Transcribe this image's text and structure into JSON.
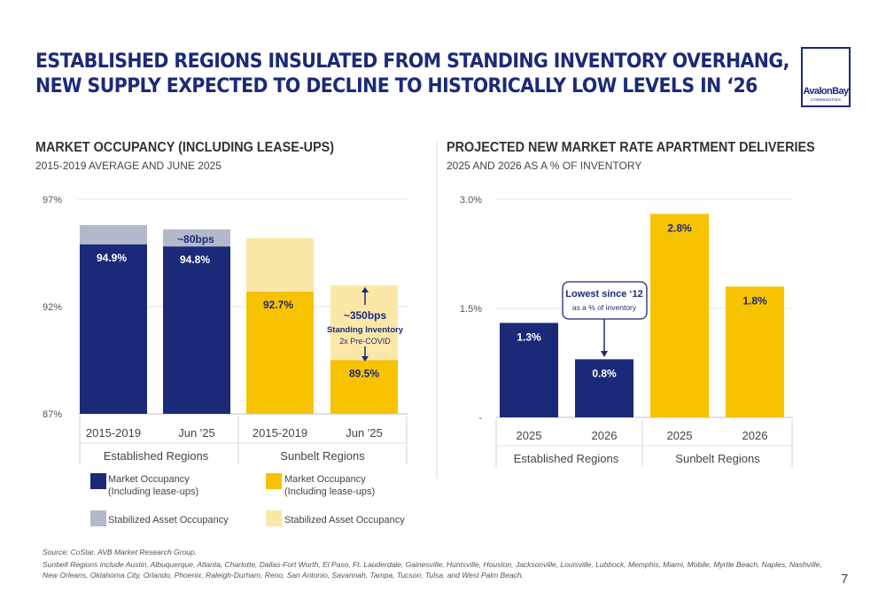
{
  "title": {
    "line1": "ESTABLISHED REGIONS INSULATED FROM STANDING INVENTORY OVERHANG,",
    "line2": "NEW SUPPLY EXPECTED TO DECLINE TO HISTORICALLY LOW LEVELS IN ‘26"
  },
  "logo": {
    "name": "AvalonBay",
    "sub": "COMMUNITIES"
  },
  "colors": {
    "navy": "#1b2a78",
    "gold": "#f7c200",
    "light_gold": "#fbe8a8",
    "light_navy": "#b3b8cb"
  },
  "chart_data": [
    {
      "type": "bar",
      "title": "MARKET OCCUPANCY (INCLUDING LEASE-UPS)",
      "subtitle": "2015-2019 AVERAGE AND JUNE 2025",
      "ylim": [
        87,
        97
      ],
      "yticks": [
        "97%",
        "92%",
        "87%"
      ],
      "ytick_values": [
        97,
        92,
        87
      ],
      "categories": [
        "2015-2019",
        "Jun '25",
        "2015-2019",
        "Jun '25"
      ],
      "groups": [
        "Established Regions",
        "Sunbelt Regions"
      ],
      "series": [
        {
          "name": "Market Occupancy (Including lease-ups)",
          "values": [
            94.9,
            94.8,
            92.7,
            89.5
          ],
          "labels": [
            "94.9%",
            "94.8%",
            "92.7%",
            "89.5%"
          ]
        },
        {
          "name": "Stabilized Asset Occupancy",
          "values": [
            95.8,
            95.6,
            95.2,
            93.0
          ]
        }
      ],
      "annotations": {
        "est_gap": "~80bps",
        "sunbelt_gap": "~350bps",
        "standing_inventory": "Standing Inventory",
        "pre_covid": "2x Pre-COVID"
      },
      "legend": [
        {
          "line1": "Market Occupancy",
          "line2": "(Including lease-ups)",
          "color": "#1b2a78"
        },
        {
          "line1": "Market Occupancy",
          "line2": "(Including lease-ups)",
          "color": "#f7c200"
        },
        {
          "line1": "Stabilized Asset Occupancy",
          "line2": "",
          "color": "#b3b8cb"
        },
        {
          "line1": "Stabilized Asset Occupancy",
          "line2": "",
          "color": "#fbe8a8"
        }
      ]
    },
    {
      "type": "bar",
      "title": "PROJECTED NEW MARKET RATE APARTMENT DELIVERIES",
      "subtitle": "2025 AND 2026 AS A % OF INVENTORY",
      "ylim": [
        0,
        3.0
      ],
      "yticks": [
        "3.0%",
        "1.5%",
        "-"
      ],
      "ytick_values": [
        3.0,
        1.5,
        0
      ],
      "categories": [
        "2025",
        "2026",
        "2025",
        "2026"
      ],
      "groups": [
        "Established Regions",
        "Sunbelt Regions"
      ],
      "values": [
        1.3,
        0.8,
        2.8,
        1.8
      ],
      "labels": [
        "1.3%",
        "0.8%",
        "2.8%",
        "1.8%"
      ],
      "callout": {
        "title": "Lowest since ‘12",
        "sub": "as a % of inventory"
      }
    }
  ],
  "footer": {
    "source": "Source:  CoStar, AVB Market Research Group.",
    "note1": "Sunbelt Regions include Austin, Albuquerque, Atlanta, Charlotte, Dallas-Fort Worth, El Paso, Ft. Lauderdale, Gainesville, Huntsville, Houston, Jacksonville, Louisville, Lubbock, Memphis, Miami, Mobile, Myrtle Beach, Naples, Nashville,",
    "note2": "New Orleans, Oklahoma City, Orlando, Phoenix, Raleigh-Durham, Reno, San Antonio, Savannah, Tampa, Tucson, Tulsa, and West Palm Beach."
  },
  "page_number": "7"
}
